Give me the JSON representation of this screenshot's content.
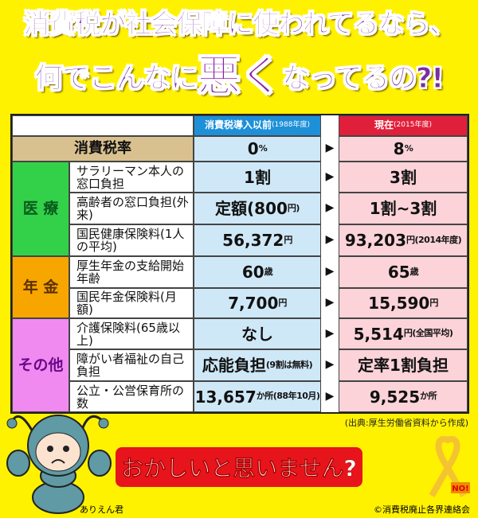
{
  "title": {
    "line1": "消費税が社会保障に使われてるなら、",
    "line2_a": "何でこんなに",
    "line2_big": "悪く",
    "line2_b": "なってるの?!"
  },
  "header": {
    "before": "消費税導入以前",
    "before_note": "(1988年度)",
    "after": "現在",
    "after_note": "(2015年度)"
  },
  "categories": {
    "tax": "消費税率",
    "medical": "医 療",
    "pension": "年 金",
    "other": "その他"
  },
  "rows": [
    {
      "label": "消費税率",
      "before": "0",
      "before_unit": "%",
      "after": "8",
      "after_unit": "%"
    },
    {
      "label": "サラリーマン本人の窓口負担",
      "before": "1割",
      "before_unit": "",
      "after": "3割",
      "after_unit": ""
    },
    {
      "label": "高齢者の窓口負担(外来)",
      "before": "定額(800",
      "before_unit": "円)",
      "after": "1割~3割",
      "after_unit": ""
    },
    {
      "label": "国民健康保険料(1人の平均)",
      "before": "56,372",
      "before_unit": "円",
      "after": "93,203",
      "after_unit": "円(2014年度)"
    },
    {
      "label": "厚生年金の支給開始年齢",
      "before": "60",
      "before_unit": "歳",
      "after": "65",
      "after_unit": "歳"
    },
    {
      "label": "国民年金保険料(月額)",
      "before": "7,700",
      "before_unit": "円",
      "after": "15,590",
      "after_unit": "円"
    },
    {
      "label": "介護保険料(65歳以上)",
      "before": "なし",
      "before_unit": "",
      "after": "5,514",
      "after_unit": "円(全国平均)"
    },
    {
      "label": "障がい者福祉の自己負担",
      "before": "応能負担",
      "before_unit": "(9割は無料)",
      "after": "定率1割負担",
      "after_unit": ""
    },
    {
      "label": "公立・公営保育所の数",
      "before": "13,657",
      "before_unit": "か所(88年10月)",
      "after": "9,525",
      "after_unit": "か所"
    }
  ],
  "arrow": "▶",
  "source": "(出典:厚生労働省資料から作成)",
  "bubble": "おかしいと思いません?",
  "mascot_name": "ありえん君",
  "ribbon_text": "NO!",
  "copyright": "©消費税廃止各界連絡会",
  "colors": {
    "title": "#7a2ea0",
    "background": "#fff200",
    "before": "#cfe8f8",
    "after": "#fbd3d9",
    "medical": "#33d14a",
    "pension": "#f7a600",
    "other": "#f08af0",
    "tax": "#d9c18f",
    "bubble": "#e8141c",
    "before_header": "#1e90d8",
    "after_header": "#e0203a"
  }
}
